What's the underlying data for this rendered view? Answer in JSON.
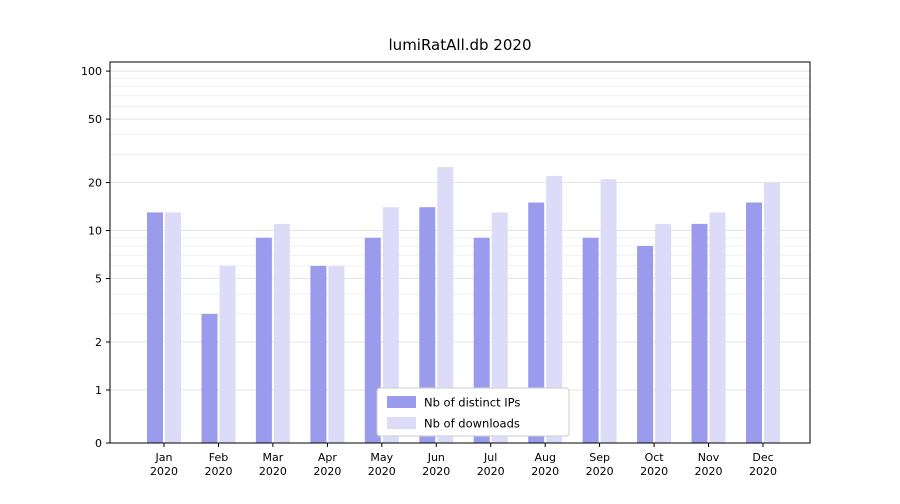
{
  "chart_data": {
    "type": "bar",
    "title": "lumiRatAll.db 2020",
    "categories": [
      "Jan",
      "Feb",
      "Mar",
      "Apr",
      "May",
      "Jun",
      "Jul",
      "Aug",
      "Sep",
      "Oct",
      "Nov",
      "Dec"
    ],
    "category_year": "2020",
    "series": [
      {
        "name": "Nb of distinct IPs",
        "color": "#9b9bee",
        "values": [
          13,
          3,
          9,
          6,
          9,
          14,
          9,
          15,
          9,
          8,
          11,
          15
        ]
      },
      {
        "name": "Nb of downloads",
        "color": "#dcdcf8",
        "values": [
          13,
          6,
          11,
          6,
          14,
          25,
          13,
          22,
          21,
          11,
          13,
          20
        ]
      }
    ],
    "yscale": "symlog",
    "yticks": [
      0,
      1,
      2,
      5,
      10,
      20,
      50,
      100
    ],
    "minor_gridlines": [
      3,
      4,
      6,
      7,
      8,
      9,
      30,
      40,
      60,
      70,
      80,
      90
    ],
    "ylim": [
      0,
      114
    ],
    "grid": true,
    "legend": {
      "position": "lower-center",
      "entries": [
        "Nb of distinct IPs",
        "Nb of downloads"
      ]
    },
    "colors": {
      "axis": "#000000",
      "grid_major": "#e4e4e4",
      "grid_minor": "#f0f0f0",
      "legend_border": "#cccccc",
      "background": "#ffffff",
      "text": "#000000"
    }
  }
}
